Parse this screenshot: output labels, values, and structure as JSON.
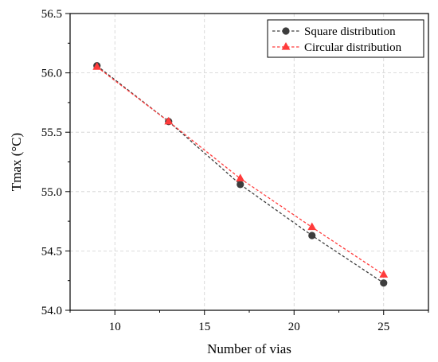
{
  "chart_data": {
    "type": "line",
    "xlabel": "Number of vias",
    "ylabel": "Tmax (°C)",
    "xlim": [
      7.5,
      27.5
    ],
    "ylim": [
      54.0,
      56.5
    ],
    "xticks": [
      "10",
      "15",
      "20",
      "25"
    ],
    "yticks": [
      "54.0",
      "54.5",
      "55.0",
      "55.5",
      "56.0",
      "56.5"
    ],
    "grid": true,
    "legend_position": "top-right",
    "series": [
      {
        "name": "Square distribution",
        "marker": "circle",
        "color": "#3d3d3d",
        "x": [
          9,
          13,
          17,
          21,
          25
        ],
        "values": [
          56.06,
          55.59,
          55.06,
          54.63,
          54.23
        ]
      },
      {
        "name": "Circular distribution",
        "marker": "triangle",
        "color": "#ff3b3b",
        "x": [
          9,
          13,
          17,
          21,
          25
        ],
        "values": [
          56.05,
          55.59,
          55.11,
          54.7,
          54.3
        ]
      }
    ]
  }
}
